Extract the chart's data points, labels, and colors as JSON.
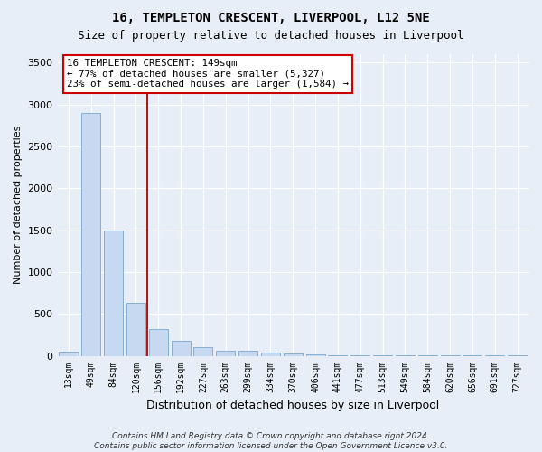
{
  "title": "16, TEMPLETON CRESCENT, LIVERPOOL, L12 5NE",
  "subtitle": "Size of property relative to detached houses in Liverpool",
  "xlabel": "Distribution of detached houses by size in Liverpool",
  "ylabel": "Number of detached properties",
  "categories": [
    "13sqm",
    "49sqm",
    "84sqm",
    "120sqm",
    "156sqm",
    "192sqm",
    "227sqm",
    "263sqm",
    "299sqm",
    "334sqm",
    "370sqm",
    "406sqm",
    "441sqm",
    "477sqm",
    "513sqm",
    "549sqm",
    "584sqm",
    "620sqm",
    "656sqm",
    "691sqm",
    "727sqm"
  ],
  "values": [
    50,
    2900,
    1500,
    630,
    320,
    175,
    100,
    65,
    65,
    40,
    30,
    15,
    10,
    7,
    5,
    4,
    3,
    2,
    1,
    1,
    1
  ],
  "bar_color": "#c6d9f0",
  "bar_edge_color": "#7ba7cb",
  "vline_x": 3.5,
  "vline_color": "#aa0000",
  "annotation_text": "16 TEMPLETON CRESCENT: 149sqm\n← 77% of detached houses are smaller (5,327)\n23% of semi-detached houses are larger (1,584) →",
  "annotation_box_color": "white",
  "annotation_box_edge": "#cc0000",
  "ylim": [
    0,
    3600
  ],
  "yticks": [
    0,
    500,
    1000,
    1500,
    2000,
    2500,
    3000,
    3500
  ],
  "footer": "Contains HM Land Registry data © Crown copyright and database right 2024.\nContains public sector information licensed under the Open Government Licence v3.0.",
  "title_fontsize": 10,
  "subtitle_fontsize": 9,
  "background_color": "#e8eef8"
}
